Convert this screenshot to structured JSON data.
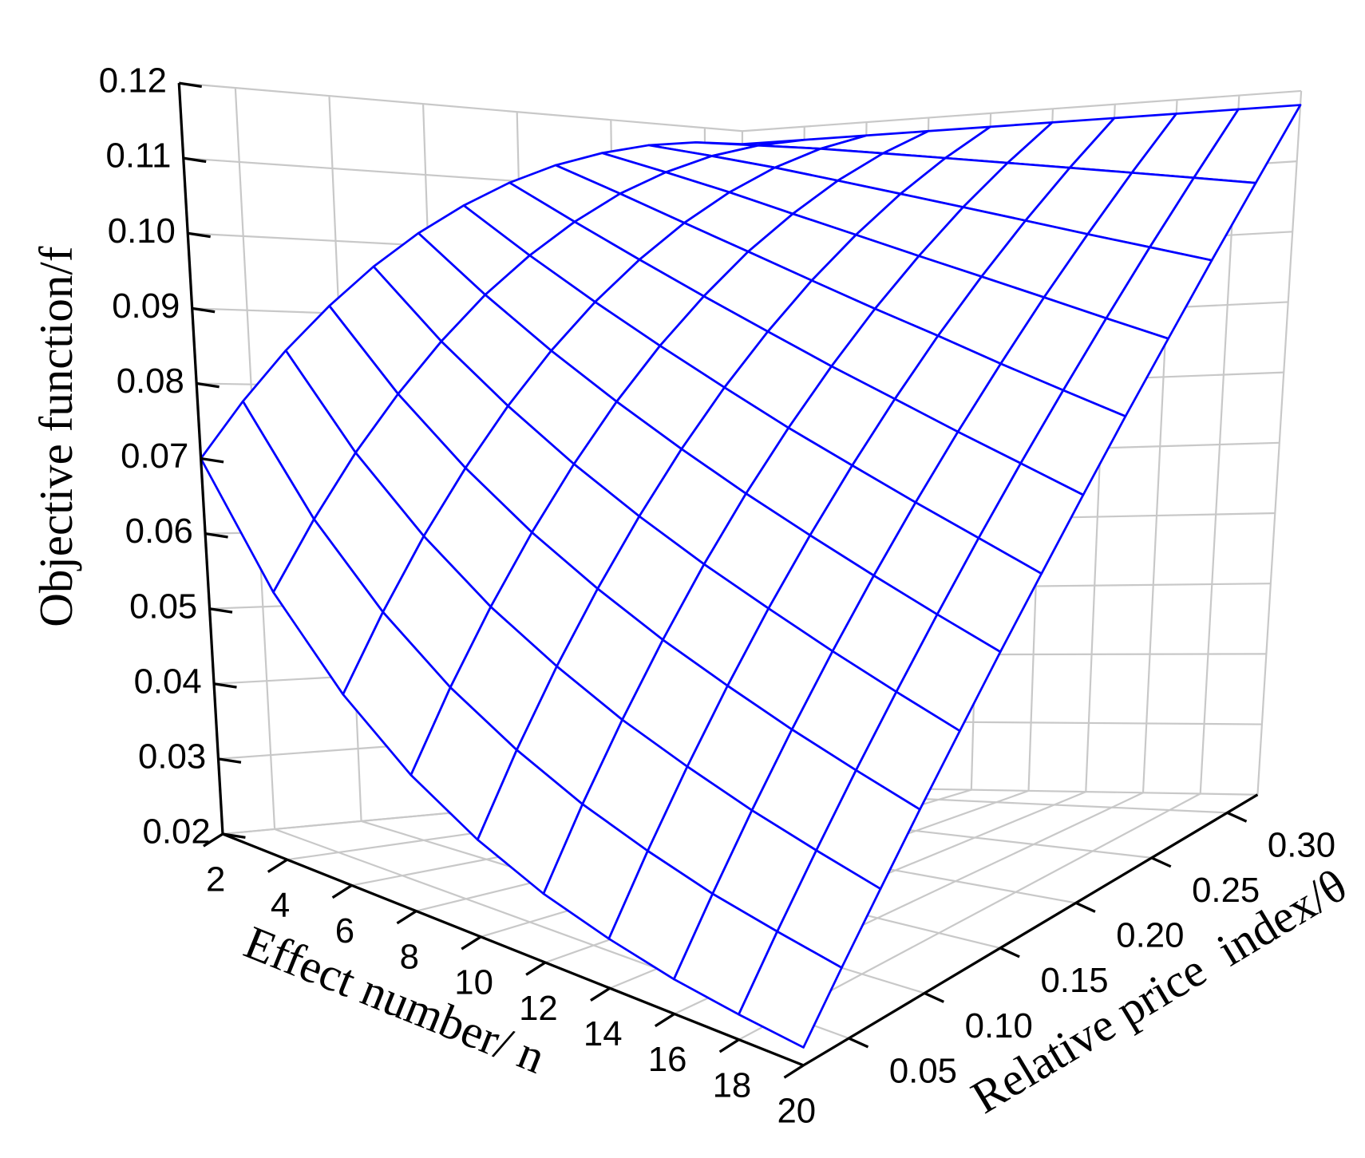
{
  "chart_data": {
    "type": "surface",
    "zlabel": "Objective function/f",
    "xlabel": "Effect number/ n",
    "ylabel": "Relative price  index/θ",
    "color": "#0000ff",
    "x": [
      2,
      4,
      6,
      8,
      10,
      12,
      14,
      16,
      18,
      20
    ],
    "y": [
      0.02,
      0.045,
      0.07,
      0.095,
      0.12,
      0.145,
      0.17,
      0.195,
      0.22,
      0.245,
      0.27,
      0.295,
      0.32
    ],
    "values": [
      [
        0.07,
        0.0777,
        0.0847,
        0.091,
        0.0967,
        0.1017,
        0.106,
        0.1097,
        0.1127,
        0.115,
        0.1167,
        0.1177,
        0.118
      ],
      [
        0.0558,
        0.0652,
        0.0739,
        0.0817,
        0.0888,
        0.0952,
        0.1007,
        0.1055,
        0.1096,
        0.1128,
        0.1153,
        0.117,
        0.118
      ],
      [
        0.0457,
        0.056,
        0.0656,
        0.0743,
        0.0823,
        0.0895,
        0.0959,
        0.1015,
        0.1064,
        0.1105,
        0.1138,
        0.1163,
        0.118
      ],
      [
        0.0384,
        0.0491,
        0.059,
        0.0682,
        0.0767,
        0.0845,
        0.0915,
        0.0977,
        0.1033,
        0.108,
        0.1121,
        0.1154,
        0.118
      ],
      [
        0.0332,
        0.0439,
        0.0539,
        0.0632,
        0.0719,
        0.08,
        0.0874,
        0.0941,
        0.1002,
        0.1056,
        0.1104,
        0.1145,
        0.118
      ],
      [
        0.0294,
        0.0398,
        0.0496,
        0.0589,
        0.0677,
        0.0759,
        0.0835,
        0.0906,
        0.0972,
        0.1032,
        0.1087,
        0.1136,
        0.118
      ],
      [
        0.0268,
        0.0367,
        0.0462,
        0.0553,
        0.064,
        0.0722,
        0.08,
        0.0874,
        0.0944,
        0.1009,
        0.107,
        0.1127,
        0.118
      ],
      [
        0.0248,
        0.0341,
        0.0432,
        0.052,
        0.0605,
        0.0687,
        0.0766,
        0.0842,
        0.0915,
        0.0986,
        0.1053,
        0.1118,
        0.118
      ],
      [
        0.0235,
        0.0322,
        0.0407,
        0.0491,
        0.0573,
        0.0654,
        0.0734,
        0.0812,
        0.0888,
        0.0963,
        0.1037,
        0.1109,
        0.118
      ],
      [
        0.0225,
        0.0305,
        0.0384,
        0.0464,
        0.0543,
        0.0623,
        0.0702,
        0.0782,
        0.0862,
        0.0941,
        0.1021,
        0.11,
        0.118
      ]
    ],
    "xlim": [
      2,
      20
    ],
    "xticks": [
      2,
      4,
      6,
      8,
      10,
      12,
      14,
      16,
      18,
      20
    ],
    "ylim": [
      0.02,
      0.32
    ],
    "yticks": [
      0.05,
      {
        "value": 0.1,
        "label": "0.10"
      },
      0.15,
      {
        "value": 0.2,
        "label": "0.20"
      },
      0.25,
      {
        "value": 0.3,
        "label": "0.30"
      }
    ],
    "zlim": [
      0.02,
      0.12
    ],
    "zticks": [
      0.02,
      0.03,
      0.04,
      0.05,
      0.06,
      0.07,
      0.08,
      0.09,
      {
        "value": 0.1,
        "label": "0.10"
      },
      0.11,
      0.12
    ],
    "grid": true
  }
}
